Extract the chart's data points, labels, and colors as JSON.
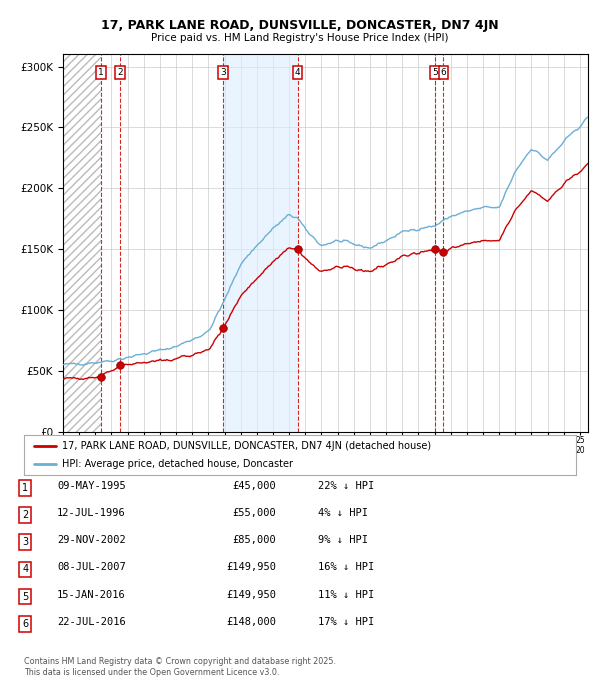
{
  "title_line1": "17, PARK LANE ROAD, DUNSVILLE, DONCASTER, DN7 4JN",
  "title_line2": "Price paid vs. HM Land Registry's House Price Index (HPI)",
  "xlim_start": 1993.0,
  "xlim_end": 2025.5,
  "ylim_min": 0,
  "ylim_max": 310000,
  "yticks": [
    0,
    50000,
    100000,
    150000,
    200000,
    250000,
    300000
  ],
  "ytick_labels": [
    "£0",
    "£50K",
    "£100K",
    "£150K",
    "£200K",
    "£250K",
    "£300K"
  ],
  "hpi_color": "#6baed6",
  "price_color": "#cc0000",
  "dashed_line_color": "#cc0000",
  "shade_color": "#ddeeff",
  "background_color": "#ffffff",
  "grid_color": "#cccccc",
  "sale_dates": [
    1995.35,
    1996.53,
    2002.91,
    2007.52,
    2016.04,
    2016.55
  ],
  "sale_prices": [
    45000,
    55000,
    85000,
    149950,
    149950,
    148000
  ],
  "sale_labels": [
    "1",
    "2",
    "3",
    "4",
    "5",
    "6"
  ],
  "transactions": [
    {
      "label": "1",
      "date": "09-MAY-1995",
      "price": "£45,000",
      "hpi_pct": "22% ↓ HPI"
    },
    {
      "label": "2",
      "date": "12-JUL-1996",
      "price": "£55,000",
      "hpi_pct": "4% ↓ HPI"
    },
    {
      "label": "3",
      "date": "29-NOV-2002",
      "price": "£85,000",
      "hpi_pct": "9% ↓ HPI"
    },
    {
      "label": "4",
      "date": "08-JUL-2007",
      "price": "£149,950",
      "hpi_pct": "16% ↓ HPI"
    },
    {
      "label": "5",
      "date": "15-JAN-2016",
      "price": "£149,950",
      "hpi_pct": "11% ↓ HPI"
    },
    {
      "label": "6",
      "date": "22-JUL-2016",
      "price": "£148,000",
      "hpi_pct": "17% ↓ HPI"
    }
  ],
  "legend_line1": "17, PARK LANE ROAD, DUNSVILLE, DONCASTER, DN7 4JN (detached house)",
  "legend_line2": "HPI: Average price, detached house, Doncaster",
  "footnote": "Contains HM Land Registry data © Crown copyright and database right 2025.\nThis data is licensed under the Open Government Licence v3.0.",
  "shade_regions": [
    [
      2002.91,
      2007.52
    ]
  ],
  "hatch_region_end": 1995.35,
  "hpi_anchors_x": [
    1993,
    1995,
    1996,
    1998,
    2000,
    2002,
    2003,
    2004,
    2005,
    2006,
    2007,
    2007.5,
    2008,
    2009,
    2010,
    2011,
    2012,
    2013,
    2014,
    2015,
    2016,
    2017,
    2018,
    2019,
    2020,
    2021,
    2022,
    2023,
    2024,
    2025.5
  ],
  "hpi_anchors_y": [
    55000,
    57000,
    58500,
    64000,
    70000,
    82000,
    108000,
    138000,
    153000,
    167000,
    178000,
    176000,
    166000,
    153000,
    157000,
    154000,
    151000,
    157000,
    164000,
    167000,
    169000,
    177000,
    181000,
    184000,
    184000,
    214000,
    233000,
    223000,
    238000,
    258000
  ]
}
